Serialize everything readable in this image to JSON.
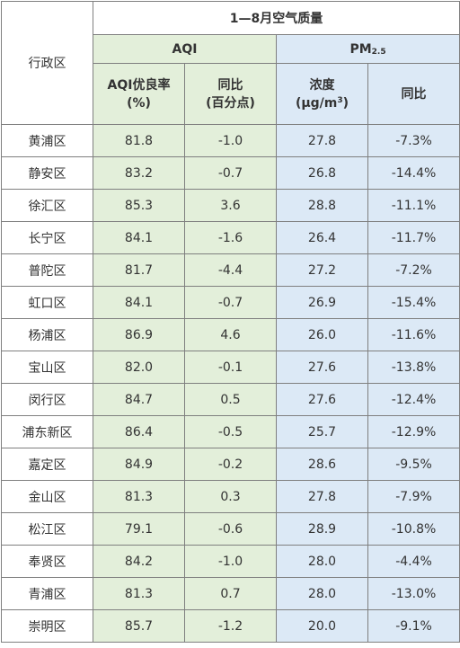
{
  "header": {
    "title": "1—8月空气质量",
    "district_label": "行政区",
    "aqi_group": "AQI",
    "pm_group_main": "PM",
    "pm_group_sub": "2.5",
    "col_aqi_rate_line1": "AQI优良率",
    "col_aqi_rate_line2": "(%)",
    "col_aqi_yoy_line1": "同比",
    "col_aqi_yoy_line2": "(百分点)",
    "col_pm_conc_line1": "浓度",
    "col_pm_conc_line2_pre": "(μg/m",
    "col_pm_conc_line2_sup": "3",
    "col_pm_conc_line2_post": ")",
    "col_pm_yoy": "同比"
  },
  "rows": [
    {
      "district": "黄浦区",
      "aqi_rate": "81.8",
      "aqi_yoy": "-1.0",
      "pm_conc": "27.8",
      "pm_yoy": "-7.3%"
    },
    {
      "district": "静安区",
      "aqi_rate": "83.2",
      "aqi_yoy": "-0.7",
      "pm_conc": "26.8",
      "pm_yoy": "-14.4%"
    },
    {
      "district": "徐汇区",
      "aqi_rate": "85.3",
      "aqi_yoy": "3.6",
      "pm_conc": "28.8",
      "pm_yoy": "-11.1%"
    },
    {
      "district": "长宁区",
      "aqi_rate": "84.1",
      "aqi_yoy": "-1.6",
      "pm_conc": "26.4",
      "pm_yoy": "-11.7%"
    },
    {
      "district": "普陀区",
      "aqi_rate": "81.7",
      "aqi_yoy": "-4.4",
      "pm_conc": "27.2",
      "pm_yoy": "-7.2%"
    },
    {
      "district": "虹口区",
      "aqi_rate": "84.1",
      "aqi_yoy": "-0.7",
      "pm_conc": "26.9",
      "pm_yoy": "-15.4%"
    },
    {
      "district": "杨浦区",
      "aqi_rate": "86.9",
      "aqi_yoy": "4.6",
      "pm_conc": "26.0",
      "pm_yoy": "-11.6%"
    },
    {
      "district": "宝山区",
      "aqi_rate": "82.0",
      "aqi_yoy": "-0.1",
      "pm_conc": "27.6",
      "pm_yoy": "-13.8%"
    },
    {
      "district": "闵行区",
      "aqi_rate": "84.7",
      "aqi_yoy": "0.5",
      "pm_conc": "27.6",
      "pm_yoy": "-12.4%"
    },
    {
      "district": "浦东新区",
      "aqi_rate": "86.4",
      "aqi_yoy": "-0.5",
      "pm_conc": "25.7",
      "pm_yoy": "-12.9%"
    },
    {
      "district": "嘉定区",
      "aqi_rate": "84.9",
      "aqi_yoy": "-0.2",
      "pm_conc": "28.6",
      "pm_yoy": "-9.5%"
    },
    {
      "district": "金山区",
      "aqi_rate": "81.3",
      "aqi_yoy": "0.3",
      "pm_conc": "27.8",
      "pm_yoy": "-7.9%"
    },
    {
      "district": "松江区",
      "aqi_rate": "79.1",
      "aqi_yoy": "-0.6",
      "pm_conc": "28.9",
      "pm_yoy": "-10.8%"
    },
    {
      "district": "奉贤区",
      "aqi_rate": "84.2",
      "aqi_yoy": "-1.0",
      "pm_conc": "28.0",
      "pm_yoy": "-4.4%"
    },
    {
      "district": "青浦区",
      "aqi_rate": "81.3",
      "aqi_yoy": "0.7",
      "pm_conc": "28.0",
      "pm_yoy": "-13.0%"
    },
    {
      "district": "崇明区",
      "aqi_rate": "85.7",
      "aqi_yoy": "-1.2",
      "pm_conc": "20.0",
      "pm_yoy": "-9.1%"
    }
  ],
  "colors": {
    "aqi_bg": "#e3efda",
    "pm_bg": "#dce9f6",
    "border": "#7f7f7f"
  }
}
